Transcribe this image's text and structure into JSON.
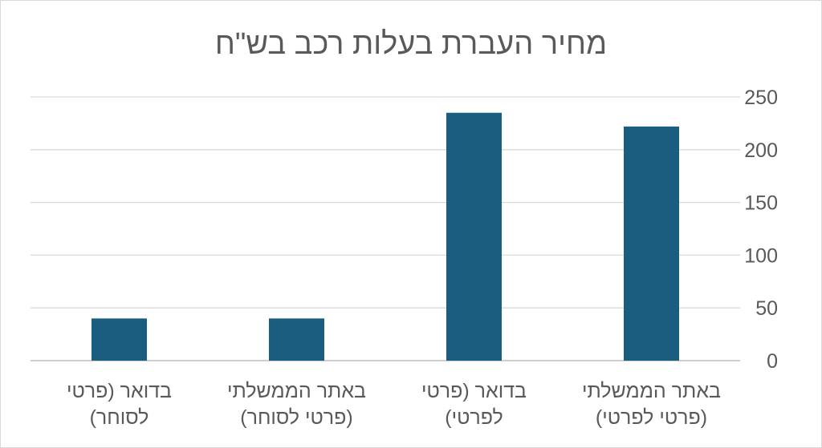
{
  "chart_data": {
    "type": "bar",
    "title": "מחיר העברת בעלות רכב בש\"ח",
    "categories": [
      "בדואר (פרטי לסוחר)",
      "באתר הממשלתי (פרטי לסוחר)",
      "בדואר (פרטי לפרטי)",
      "באתר הממשלתי (פרטי לפרטי)"
    ],
    "category_lines": [
      [
        "בדואר (פרטי",
        "לסוחר)"
      ],
      [
        "באתר הממשלתי",
        "(פרטי לסוחר)"
      ],
      [
        "בדואר (פרטי",
        "לפרטי)"
      ],
      [
        "באתר הממשלתי",
        "(פרטי לפרטי)"
      ]
    ],
    "values": [
      40,
      40,
      235,
      222
    ],
    "ylim": [
      0,
      250
    ],
    "yticks": [
      0,
      50,
      100,
      150,
      200,
      250
    ],
    "y_axis_side": "right",
    "grid": true,
    "legend": "none",
    "bar_color": "#1b5d7f"
  }
}
